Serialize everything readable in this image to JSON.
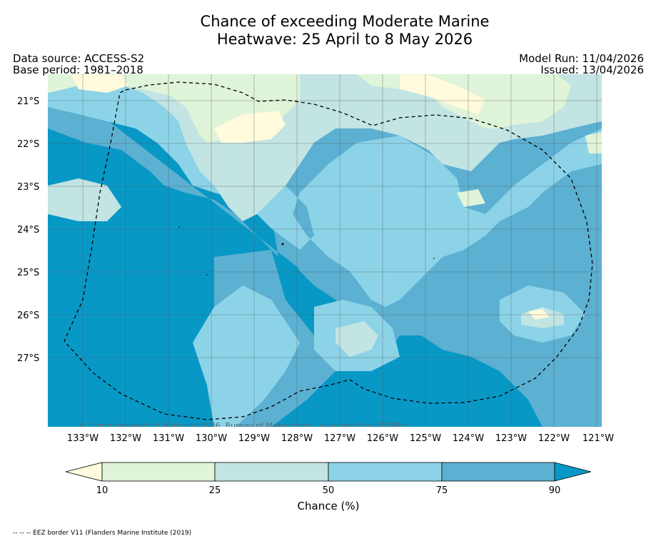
{
  "title": {
    "line1": "Chance of exceeding Moderate Marine",
    "line2": "Heatwave: 25 April to 8 May 2026"
  },
  "meta": {
    "data_source": "Data source: ACCESS-S2",
    "base_period": "Base period: 1981–2018",
    "model_run": "Model Run: 11/04/2026",
    "issued": "Issued: 13/04/2026"
  },
  "map": {
    "lat_labels": [
      "21°S",
      "22°S",
      "23°S",
      "24°S",
      "25°S",
      "26°S",
      "27°S"
    ],
    "lon_labels": [
      "133°W",
      "132°W",
      "131°W",
      "130°W",
      "129°W",
      "128°W",
      "127°W",
      "126°W",
      "125°W",
      "124°W",
      "123°W",
      "122°W",
      "121°W"
    ],
    "copyright": "© Commonwealth of Australia 2026, Bureau of Meteorology, supported by COSPPac",
    "colors": {
      "band_lt10": "#fffbdc",
      "band_10_25": "#dff4d8",
      "band_25_50": "#c2e4e3",
      "band_50_75": "#8dd3e8",
      "band_75_90": "#5cb0d2",
      "band_gt90": "#0898c6"
    }
  },
  "colorbar": {
    "ticks": [
      "10",
      "25",
      "50",
      "75",
      "90"
    ],
    "label": "Chance (%)"
  },
  "footnote": "-- -- -- EEZ border V11 (Flanders Marine Institute (2019)"
}
